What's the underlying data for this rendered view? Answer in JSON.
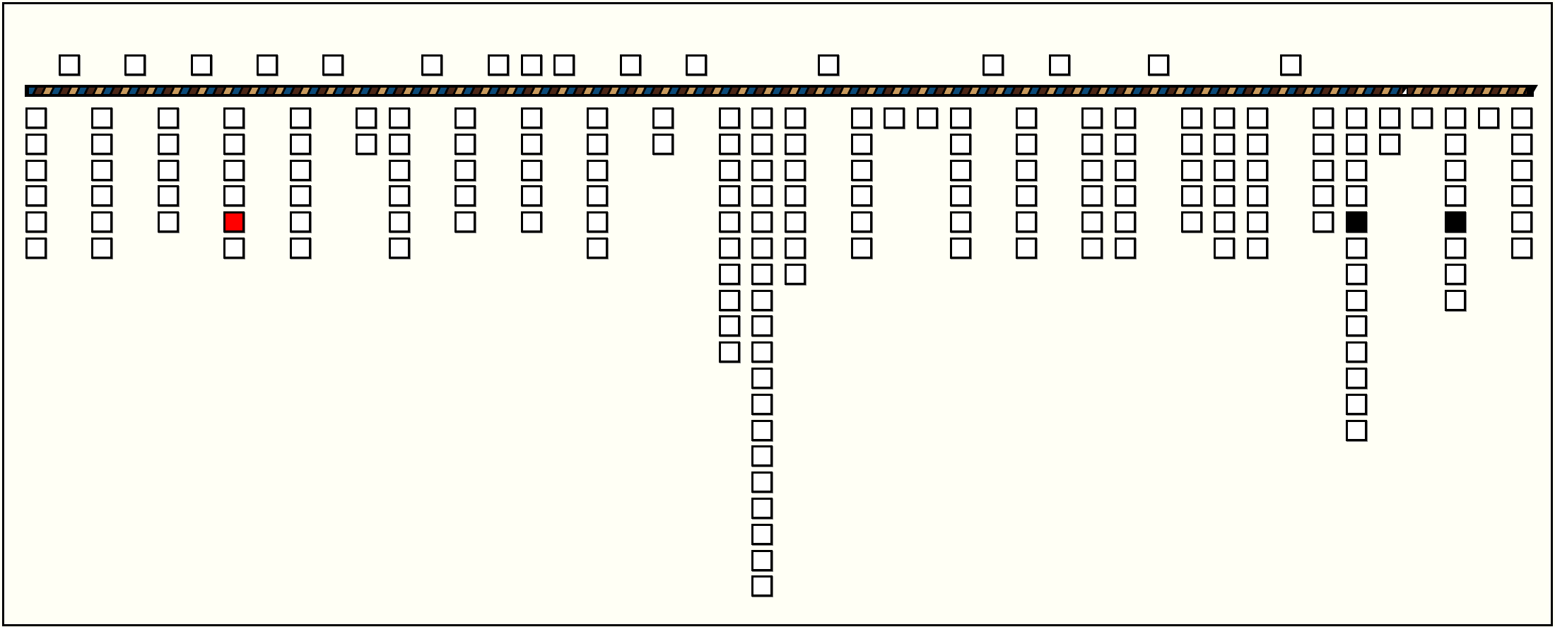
{
  "colors": {
    "background": "#fffff5",
    "cell": "#ffffff",
    "highlight_red": "#ff0000",
    "highlight_black": "#000000",
    "stripe_blue": "#0b4a78",
    "stripe_brown": "#4a2616",
    "stripe_tan": "#c89a5c"
  },
  "top_row_cells": 16,
  "bar": {
    "marker_progress": 0.917
  },
  "columns": [
    {
      "count": 6
    },
    {
      "count": 6
    },
    {
      "count": 5
    },
    {
      "count": 6,
      "red_at": 4
    },
    {
      "count": 6
    },
    {
      "count": 2
    },
    {
      "count": 6
    },
    {
      "count": 5
    },
    {
      "count": 5
    },
    {
      "count": 6
    },
    {
      "count": 2
    },
    {
      "count": 10
    },
    {
      "count": 19
    },
    {
      "count": 7
    },
    {
      "count": 6
    },
    {
      "count": 1
    },
    {
      "count": 1
    },
    {
      "count": 6
    },
    {
      "count": 6
    },
    {
      "count": 6
    },
    {
      "count": 6
    },
    {
      "count": 5
    },
    {
      "count": 6
    },
    {
      "count": 6
    },
    {
      "count": 5
    },
    {
      "count": 13,
      "black_at": 4
    },
    {
      "count": 2
    },
    {
      "count": 1
    },
    {
      "count": 8,
      "black_at": 4
    },
    {
      "count": 1
    },
    {
      "count": 6
    }
  ]
}
